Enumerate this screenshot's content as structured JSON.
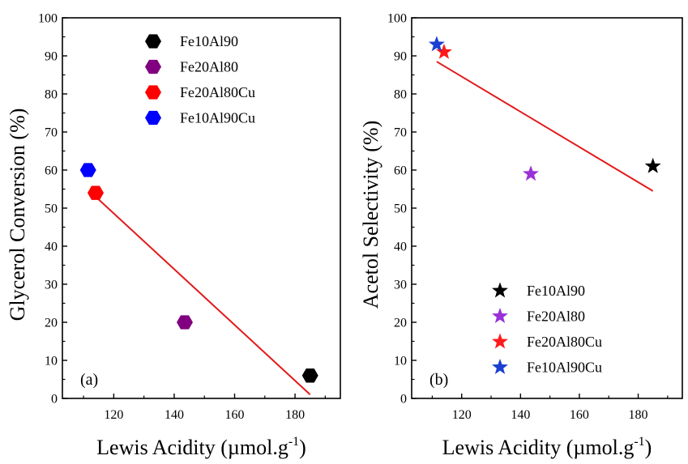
{
  "chart_data": [
    {
      "type": "scatter",
      "panel_label": "(a)",
      "xlabel": "Lewis Acidity (µmol.g",
      "xlabel_sup": "-1",
      "xlabel_close": ")",
      "ylabel": "Glycerol Conversion (%)",
      "xlim": [
        103,
        195
      ],
      "ylim": [
        0,
        100
      ],
      "xticks": [
        120,
        140,
        160,
        180
      ],
      "yticks": [
        0,
        10,
        20,
        30,
        40,
        50,
        60,
        70,
        80,
        90,
        100
      ],
      "marker": "hexagon",
      "legend_position": "top-right",
      "series": [
        {
          "name": "Fe10Al90",
          "color": "#000000",
          "x": 185,
          "y": 6
        },
        {
          "name": "Fe20Al80",
          "color": "#800080",
          "x": 143.5,
          "y": 20
        },
        {
          "name": "Fe20Al80Cu",
          "color": "#ff0000",
          "x": 114,
          "y": 54
        },
        {
          "name": "Fe10Al90Cu",
          "color": "#0000ff",
          "x": 111.5,
          "y": 60
        }
      ],
      "fit_line": {
        "color": "#e31a1c",
        "x": [
          114,
          185
        ],
        "y": [
          53,
          1
        ]
      }
    },
    {
      "type": "scatter",
      "panel_label": "(b)",
      "xlabel": "Lewis Acidity (µmol.g",
      "xlabel_sup": "-1",
      "xlabel_close": ")",
      "ylabel": "Acetol Selectivity (%)",
      "xlim": [
        103,
        195
      ],
      "ylim": [
        0,
        100
      ],
      "xticks": [
        120,
        140,
        160,
        180
      ],
      "yticks": [
        0,
        10,
        20,
        30,
        40,
        50,
        60,
        70,
        80,
        90,
        100
      ],
      "marker": "star",
      "legend_position": "bottom-right",
      "series": [
        {
          "name": "Fe10Al90",
          "color": "#000000",
          "x": 185,
          "y": 61
        },
        {
          "name": "Fe20Al80",
          "color": "#9b30d9",
          "x": 143.5,
          "y": 59
        },
        {
          "name": "Fe20Al80Cu",
          "color": "#ff1a1a",
          "x": 114,
          "y": 91
        },
        {
          "name": "Fe10Al90Cu",
          "color": "#1a3fd1",
          "x": 111.5,
          "y": 93
        }
      ],
      "fit_line": {
        "color": "#e31a1c",
        "x": [
          111.5,
          185
        ],
        "y": [
          88.5,
          54.5
        ]
      }
    }
  ]
}
